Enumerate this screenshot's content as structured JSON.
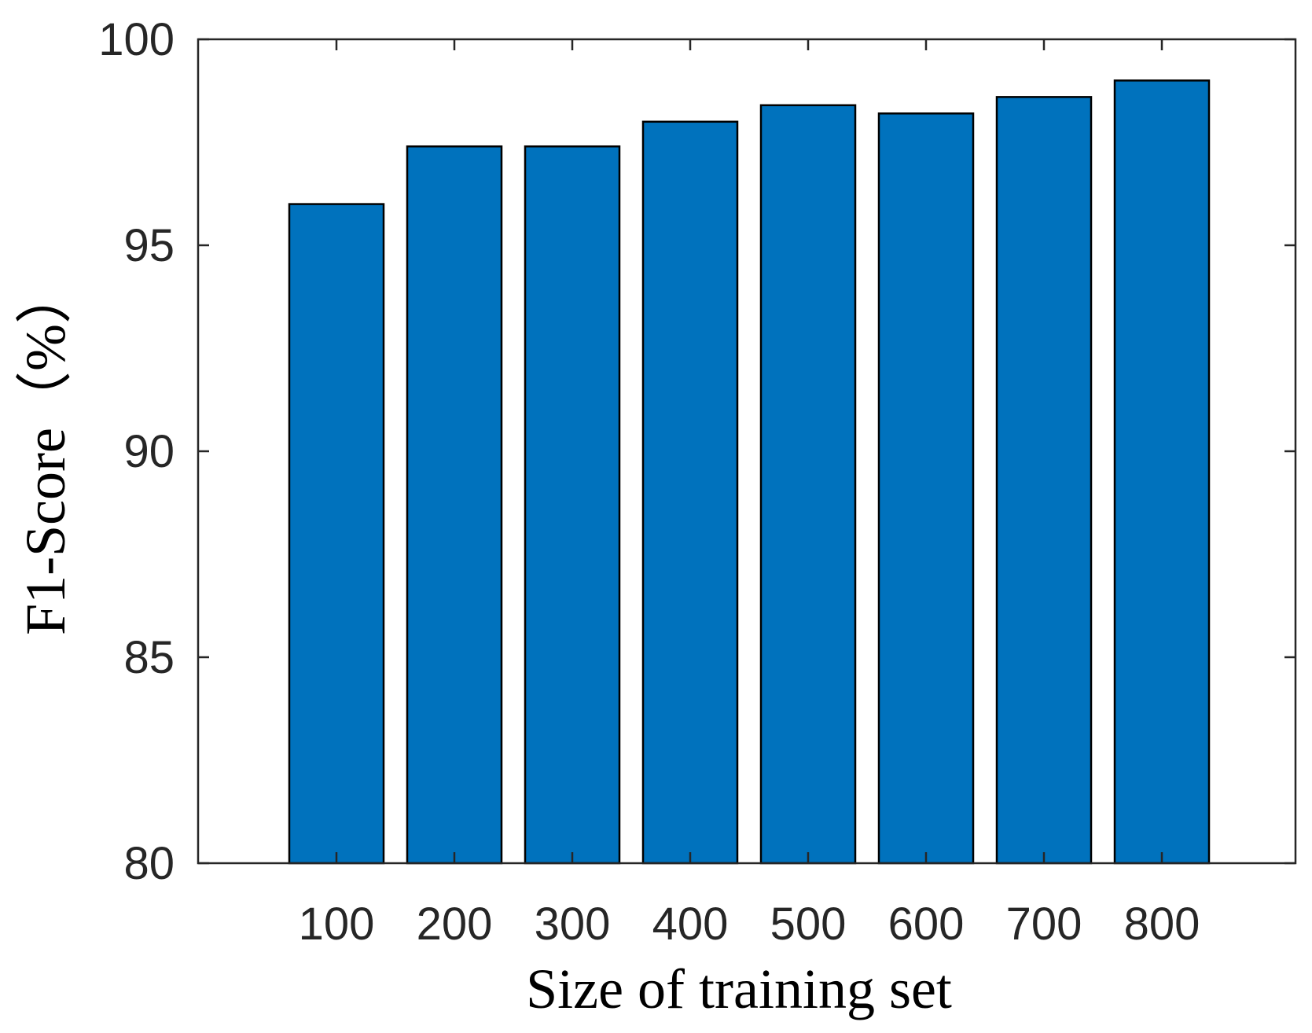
{
  "chart_data": {
    "type": "bar",
    "categories": [
      "100",
      "200",
      "300",
      "400",
      "500",
      "600",
      "700",
      "800"
    ],
    "values": [
      96.0,
      97.4,
      97.4,
      98.0,
      98.4,
      98.2,
      98.6,
      99.0
    ],
    "xlabel": "Size of training set",
    "ylabel": "F1-Score（%）",
    "ylim": [
      80,
      100
    ],
    "yticks": [
      "80",
      "85",
      "90",
      "95",
      "100"
    ],
    "bar_color": "#0072BD",
    "edge_color": "#000000",
    "grid": false,
    "box": true
  }
}
